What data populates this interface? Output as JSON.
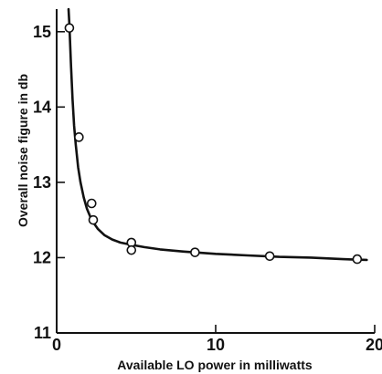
{
  "chart_data": {
    "type": "scatter",
    "title": "",
    "xlabel": "Available LO power in milliwatts",
    "ylabel": "Overall noise figure in db",
    "xlim": [
      0,
      20
    ],
    "ylim": [
      11,
      15.3
    ],
    "xticks": [
      {
        "value": 0,
        "label": "0"
      },
      {
        "value": 10,
        "label": "10"
      },
      {
        "value": 20,
        "label": "20"
      }
    ],
    "yticks": [
      {
        "value": 11,
        "label": "11"
      },
      {
        "value": 12,
        "label": "12"
      },
      {
        "value": 13,
        "label": "13"
      },
      {
        "value": 14,
        "label": "14"
      },
      {
        "value": 15,
        "label": "15"
      }
    ],
    "grid": false,
    "legend": "none",
    "series": [
      {
        "kind": "points",
        "marker": "open-circle",
        "x": [
          0.8,
          1.4,
          2.2,
          2.3,
          4.7,
          4.7,
          8.7,
          13.4,
          18.9
        ],
        "y": [
          15.05,
          13.6,
          12.72,
          12.5,
          12.2,
          12.1,
          12.07,
          12.02,
          11.98
        ]
      },
      {
        "kind": "fitted-curve",
        "x": [
          0.75,
          0.8,
          0.9,
          1.0,
          1.1,
          1.2,
          1.35,
          1.5,
          1.7,
          1.9,
          2.2,
          2.6,
          3.0,
          3.5,
          4.0,
          4.7,
          5.5,
          6.5,
          8.0,
          10.0,
          12.0,
          14.0,
          16.0,
          18.0,
          19.5
        ],
        "y": [
          15.5,
          15.1,
          14.55,
          14.1,
          13.75,
          13.5,
          13.2,
          13.0,
          12.8,
          12.65,
          12.5,
          12.38,
          12.3,
          12.24,
          12.2,
          12.17,
          12.14,
          12.11,
          12.08,
          12.05,
          12.03,
          12.01,
          12.0,
          11.98,
          11.97
        ]
      }
    ],
    "colors": {
      "ink": "#111111",
      "background": "#ffffff"
    }
  }
}
